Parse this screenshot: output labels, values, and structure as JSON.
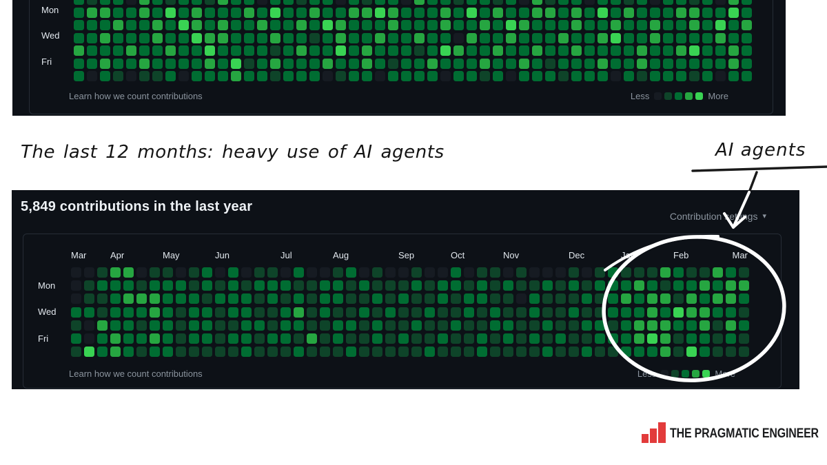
{
  "annotation": {
    "headline": "The last 12 months: heavy use of AI agents",
    "callout": "AI agents"
  },
  "logo": {
    "text": "THE PRAGMATIC ENGINEER"
  },
  "colors": {
    "panel_bg": "#0d1117",
    "panel_border": "#262d36",
    "level0": "#161b22",
    "level1": "#0e4429",
    "level2": "#006d32",
    "level3": "#26a641",
    "level4": "#39d353",
    "muted_text": "#8b949e",
    "bright_text": "#e6edf3",
    "accent_red": "#e23b3b",
    "annotation_ink": "#141414",
    "circle_stroke": "#ffffff"
  },
  "chart_data": [
    {
      "type": "heatmap",
      "id": "top-contribution-graph-cropped",
      "day_labels": [
        "Mon",
        "Wed",
        "Fri"
      ],
      "footer": "Learn how we count contributions",
      "legend": {
        "less": "Less",
        "more": "More"
      },
      "levels_range": [
        0,
        4
      ],
      "grid": [
        [
          "2122032122132",
          "2022122021220",
          "3221221203122",
          "0221202212032"
        ],
        [
          "2332232423222",
          "3242232233432",
          "2232423223323",
          "2423222332242"
        ],
        [
          "2223223243232",
          "2322324322232",
          "2232232432223",
          "2232232232423"
        ],
        [
          "2232223224332",
          "2232212322322",
          "3220322322232",
          "2342232222322"
        ],
        [
          "3222322322422",
          "2212322423222",
          "1243223223223",
          "2222322342232"
        ],
        [
          "2232232222324",
          "1232223223212",
          "2322232232122",
          "2322322222232"
        ],
        [
          "2021011202223",
          "2212220122022",
          "2202212022212",
          "2202122212022"
        ]
      ]
    },
    {
      "type": "heatmap",
      "id": "bottom-contribution-graph",
      "title": "5,849 contributions in the last year",
      "settings_label": "Contribution settings",
      "settings_caret": "▾",
      "months": [
        "Mar",
        "Apr",
        "May",
        "Jun",
        "Jul",
        "Aug",
        "Sep",
        "Oct",
        "Nov",
        "Dec",
        "Jan",
        "Feb",
        "Mar"
      ],
      "day_labels": [
        "Mon",
        "Wed",
        "Fri"
      ],
      "footer": "Learn how we count contributions",
      "legend": {
        "less": "Less",
        "more": "More"
      },
      "levels_range": [
        0,
        4
      ],
      "grid": [
        [
          "00",
          "133011012",
          "0201102001201",
          "0010020110100",
          "01012",
          "1113211321"
        ],
        [
          "01",
          "222122212",
          "1212221122121",
          "1121221212112",
          "12122",
          "2321223233"
        ],
        [
          "01",
          "123332221",
          "2221212122112",
          "1211212211021",
          "11212",
          "3233132332"
        ],
        [
          "22",
          "122232122",
          "1221123121121",
          "2112112121121",
          "12112",
          "2232433221"
        ],
        [
          "10",
          "322122122",
          "1122122112212",
          "1121121122112",
          "11221",
          "2333223132"
        ],
        [
          "20",
          "232232122",
          "1221221312112",
          "1211211212121",
          "21122",
          "2343122121"
        ],
        [
          "14",
          "232122111",
          "1121112111211",
          "1112111211112",
          "11211",
          "2223142111"
        ]
      ]
    }
  ]
}
